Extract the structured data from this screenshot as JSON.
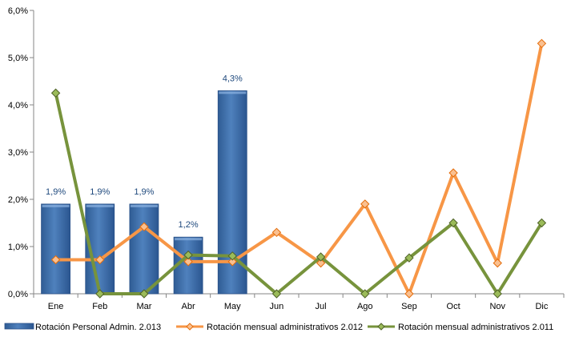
{
  "chart_data": {
    "type": "bar",
    "categories": [
      "Ene",
      "Feb",
      "Mar",
      "Abr",
      "May",
      "Jun",
      "Jul",
      "Ago",
      "Sep",
      "Oct",
      "Nov",
      "Dic"
    ],
    "y_ticks": [
      "0,0%",
      "1,0%",
      "2,0%",
      "3,0%",
      "4,0%",
      "5,0%",
      "6,0%"
    ],
    "ylim": [
      0,
      6
    ],
    "grid": false,
    "legend_position": "bottom",
    "series": [
      {
        "name": "Rotación Personal Admin. 2.013",
        "type": "bar",
        "color": "#4F81BD",
        "values": [
          1.9,
          1.9,
          1.9,
          1.2,
          4.3,
          null,
          null,
          null,
          null,
          null,
          null,
          null
        ],
        "labels": [
          "1,9%",
          "1,9%",
          "1,9%",
          "1,2%",
          "4,3%"
        ]
      },
      {
        "name": "Rotación mensual administrativos 2.012",
        "type": "line",
        "color": "#F79646",
        "values": [
          0.72,
          0.72,
          1.42,
          0.68,
          0.68,
          1.3,
          0.65,
          1.9,
          0.0,
          2.56,
          0.65,
          5.3
        ]
      },
      {
        "name": "Rotación mensual administrativos 2.011",
        "type": "line",
        "color": "#77933C",
        "values": [
          4.25,
          0.0,
          0.0,
          0.82,
          0.8,
          0.0,
          0.78,
          0.0,
          0.76,
          1.5,
          0.0,
          1.5
        ]
      }
    ]
  }
}
